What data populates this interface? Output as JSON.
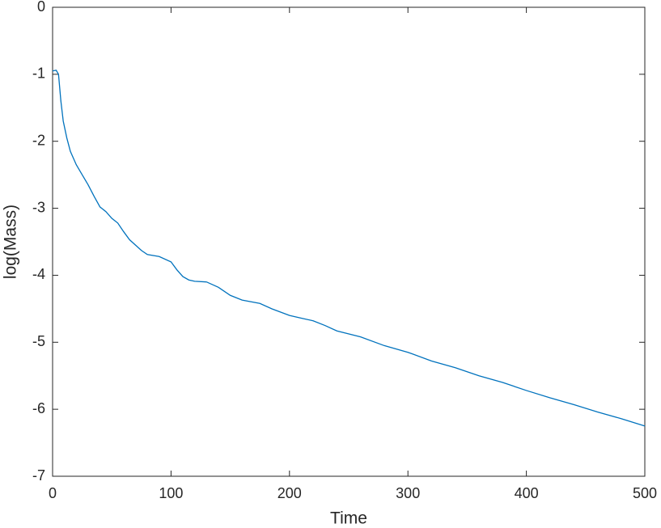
{
  "chart_data": {
    "type": "line",
    "x_label": "Time",
    "y_label": "log(Mass)",
    "x": [
      0,
      3,
      5,
      7,
      9,
      12,
      15,
      20,
      25,
      30,
      35,
      40,
      45,
      50,
      55,
      60,
      65,
      70,
      75,
      80,
      90,
      100,
      105,
      110,
      115,
      120,
      130,
      140,
      150,
      160,
      175,
      185,
      200,
      210,
      220,
      230,
      240,
      260,
      280,
      300,
      320,
      340,
      360,
      380,
      400,
      420,
      440,
      460,
      480,
      500
    ],
    "series": [
      {
        "color": "#0072bd",
        "values": [
          -0.95,
          -0.94,
          -1.0,
          -1.4,
          -1.7,
          -1.95,
          -2.15,
          -2.35,
          -2.5,
          -2.65,
          -2.82,
          -2.98,
          -3.05,
          -3.15,
          -3.22,
          -3.35,
          -3.47,
          -3.55,
          -3.63,
          -3.69,
          -3.72,
          -3.8,
          -3.92,
          -4.02,
          -4.07,
          -4.09,
          -4.1,
          -4.18,
          -4.3,
          -4.37,
          -4.42,
          -4.5,
          -4.6,
          -4.64,
          -4.68,
          -4.75,
          -4.83,
          -4.92,
          -5.05,
          -5.15,
          -5.28,
          -5.38,
          -5.5,
          -5.6,
          -5.72,
          -5.83,
          -5.93,
          -6.04,
          -6.14,
          -6.25
        ]
      }
    ],
    "xlim": [
      0,
      500
    ],
    "xticks": [
      0,
      100,
      200,
      300,
      400,
      500
    ],
    "ylim": [
      -7,
      0
    ],
    "yticks": [
      -7,
      -6,
      -5,
      -4,
      -3,
      -2,
      -1,
      0
    ],
    "grid": false
  }
}
